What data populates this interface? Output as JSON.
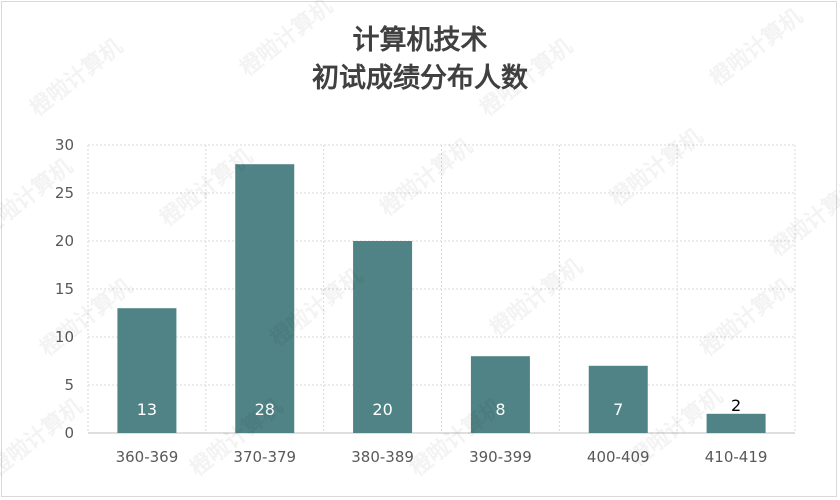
{
  "chart_data": {
    "type": "bar",
    "title_line1": "计算机技术",
    "title_line2": "初试成绩分布人数",
    "categories": [
      "360-369",
      "370-379",
      "380-389",
      "390-399",
      "400-409",
      "410-419"
    ],
    "values": [
      13,
      28,
      20,
      8,
      7,
      2
    ],
    "ylim": [
      0,
      30
    ],
    "yticks": [
      0,
      5,
      10,
      15,
      20,
      25,
      30
    ],
    "grid": true,
    "legend": "none",
    "bar_color": "#4f8385",
    "label_color_inside": "#ffffff",
    "label_color_outside": "#000000"
  },
  "watermark": "橙啦计算机"
}
